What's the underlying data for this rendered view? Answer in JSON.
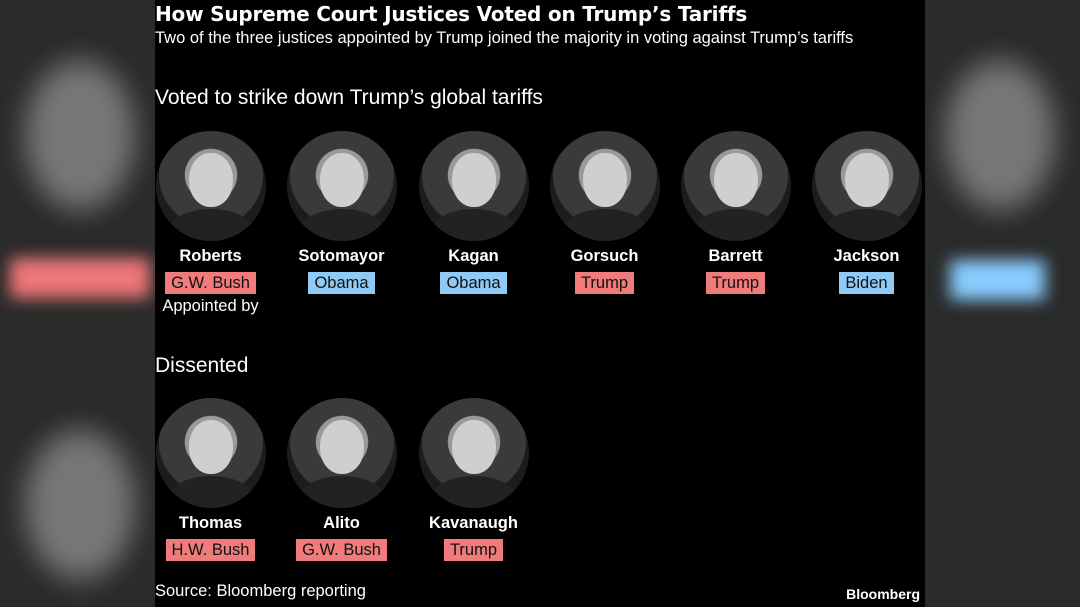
{
  "title": "How Supreme Court Justices Voted on Trump’s Tariffs",
  "subtitle": "Two of the three justices appointed by Trump joined the majority in voting against Trump’s tariffs",
  "majority": {
    "heading": "Voted to strike down Trump’s global tariffs",
    "justices": [
      {
        "name": "Roberts",
        "appointed_by": "G.W. Bush",
        "party_color": "#f07b7b"
      },
      {
        "name": "Sotomayor",
        "appointed_by": "Obama",
        "party_color": "#8ecaf5"
      },
      {
        "name": "Kagan",
        "appointed_by": "Obama",
        "party_color": "#8ecaf5"
      },
      {
        "name": "Gorsuch",
        "appointed_by": "Trump",
        "party_color": "#f07b7b"
      },
      {
        "name": "Barrett",
        "appointed_by": "Trump",
        "party_color": "#f07b7b"
      },
      {
        "name": "Jackson",
        "appointed_by": "Biden",
        "party_color": "#8ecaf5"
      }
    ],
    "appointed_by_label": "Appointed by"
  },
  "dissent": {
    "heading": "Dissented",
    "justices": [
      {
        "name": "Thomas",
        "appointed_by": "H.W. Bush",
        "party_color": "#f07b7b"
      },
      {
        "name": "Alito",
        "appointed_by": "G.W. Bush",
        "party_color": "#f07b7b"
      },
      {
        "name": "Kavanaugh",
        "appointed_by": "Trump",
        "party_color": "#f07b7b"
      }
    ]
  },
  "source": "Source: Bloomberg reporting",
  "logo": "Bloomberg"
}
